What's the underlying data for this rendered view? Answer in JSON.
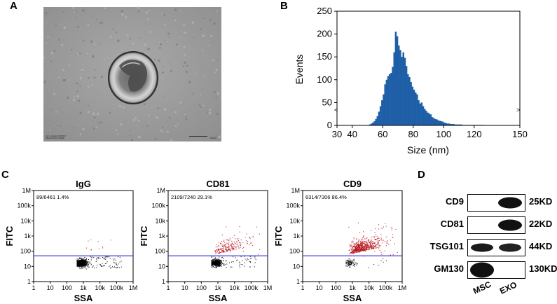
{
  "panels": {
    "a": {
      "letter": "A",
      "caption_line1": "Acc. voltage=100.0kV",
      "caption_line2": "Magnification=40.0k",
      "scale_label": "100nm"
    },
    "b": {
      "letter": "B"
    },
    "c": {
      "letter": "C"
    },
    "d": {
      "letter": "D"
    }
  },
  "chart_data": [
    {
      "type": "bar",
      "title": "",
      "xlabel": "Size (nm)",
      "ylabel": "Events",
      "xlim": [
        30,
        150
      ],
      "ylim": [
        0,
        250
      ],
      "xticks": [
        30,
        40,
        60,
        80,
        100,
        120,
        150
      ],
      "yticks": [
        0,
        50,
        100,
        150,
        200,
        250
      ],
      "color": "#1f5fa8",
      "x": [
        50,
        51,
        52,
        53,
        54,
        55,
        56,
        57,
        58,
        59,
        60,
        61,
        62,
        63,
        64,
        65,
        66,
        67,
        68,
        69,
        70,
        71,
        72,
        73,
        74,
        75,
        76,
        77,
        78,
        79,
        80,
        81,
        82,
        83,
        84,
        85,
        86,
        87,
        88,
        89,
        90,
        91,
        92,
        93,
        94,
        95,
        96,
        97,
        98,
        99,
        100,
        101,
        102,
        103,
        104,
        105,
        106,
        107,
        108,
        109,
        110,
        111,
        112,
        113,
        114,
        115,
        116,
        117,
        118,
        119,
        120,
        121,
        122,
        123,
        124,
        125
      ],
      "values": [
        1,
        2,
        4,
        6,
        9,
        14,
        20,
        30,
        42,
        55,
        68,
        90,
        100,
        108,
        112,
        115,
        128,
        160,
        205,
        195,
        175,
        165,
        150,
        160,
        148,
        130,
        112,
        106,
        95,
        85,
        78,
        72,
        68,
        55,
        48,
        50,
        42,
        36,
        32,
        28,
        26,
        24,
        18,
        16,
        14,
        13,
        11,
        10,
        9,
        8,
        6,
        5,
        4,
        4,
        3,
        3,
        3,
        2,
        2,
        2,
        2,
        2,
        1,
        1,
        1,
        1,
        1,
        1,
        1,
        1,
        1,
        1,
        1,
        1,
        1,
        1
      ]
    },
    {
      "type": "scatter",
      "title": "IgG",
      "xlabel": "SSA",
      "ylabel": "FITC",
      "scale": "log",
      "xticks": [
        "1",
        "10",
        "100",
        "1k",
        "10k",
        "100k",
        "1M"
      ],
      "yticks": [
        "1",
        "10",
        "100",
        "1k",
        "10k",
        "100k",
        "1M"
      ],
      "threshold": 50,
      "annotation": "89/6461  1.4%",
      "gated_fraction": 0.014,
      "positive_color": "#b4101a",
      "negative_color": "#000000",
      "threshold_color": "#2a2ae0"
    },
    {
      "type": "scatter",
      "title": "CD81",
      "xlabel": "SSA",
      "ylabel": "FITC",
      "scale": "log",
      "xticks": [
        "1",
        "10",
        "100",
        "1k",
        "10k",
        "100k",
        "1M"
      ],
      "yticks": [
        "1",
        "10",
        "100",
        "1k",
        "10k",
        "100k",
        "1M"
      ],
      "threshold": 50,
      "annotation": "2109/7240  29.1%",
      "gated_fraction": 0.291,
      "positive_color": "#b4101a",
      "negative_color": "#000000",
      "threshold_color": "#2a2ae0"
    },
    {
      "type": "scatter",
      "title": "CD9",
      "xlabel": "SSA",
      "ylabel": "FITC",
      "scale": "log",
      "xticks": [
        "1",
        "10",
        "100",
        "1k",
        "10k",
        "100k",
        "1M"
      ],
      "yticks": [
        "1",
        "10",
        "100",
        "1k",
        "10k",
        "100k",
        "1M"
      ],
      "threshold": 50,
      "annotation": "6314/7306  86.4%",
      "gated_fraction": 0.864,
      "positive_color": "#b4101a",
      "negative_color": "#000000",
      "threshold_color": "#2a2ae0"
    }
  ],
  "western_blot": {
    "rows": [
      {
        "protein": "CD9",
        "kd": "25KD",
        "msc": 0.0,
        "exo": 1.0
      },
      {
        "protein": "CD81",
        "kd": "22KD",
        "msc": 0.0,
        "exo": 1.0
      },
      {
        "protein": "TSG101",
        "kd": "44KD",
        "msc": 0.9,
        "exo": 0.85
      },
      {
        "protein": "GM130",
        "kd": "130KD",
        "msc": 1.0,
        "exo": 0.0
      }
    ],
    "lanes": [
      "MSC",
      "EXO"
    ]
  }
}
